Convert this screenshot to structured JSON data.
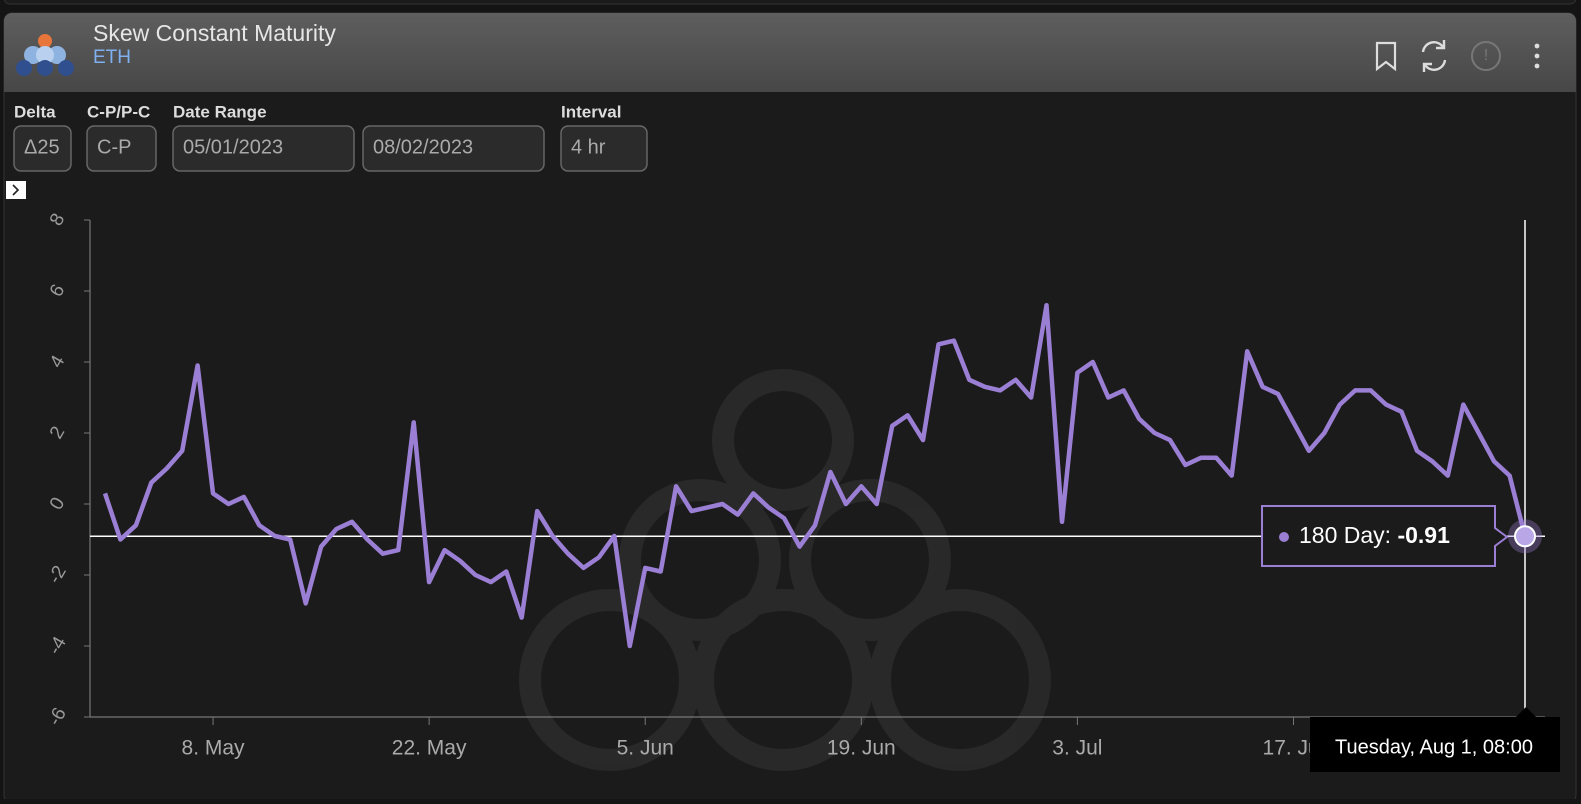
{
  "header": {
    "title": "Skew Constant Maturity",
    "subtitle": "ETH"
  },
  "controls": [
    {
      "label": "Delta",
      "value": "Δ25"
    },
    {
      "label": "C-P/P-C",
      "value": "C-P"
    },
    {
      "label": "Date Range",
      "value": "05/01/2023"
    },
    {
      "label": null,
      "value": "08/02/2023"
    },
    {
      "label": "Interval",
      "value": "4 hr"
    }
  ],
  "chart_data": {
    "type": "line",
    "categories": [
      null,
      null,
      null,
      null,
      null,
      null,
      null,
      "8. May",
      null,
      null,
      null,
      null,
      null,
      null,
      null,
      null,
      null,
      null,
      null,
      null,
      null,
      "22. May",
      null,
      null,
      null,
      null,
      null,
      null,
      null,
      null,
      null,
      null,
      null,
      null,
      null,
      "5. Jun",
      null,
      null,
      null,
      null,
      null,
      null,
      null,
      null,
      null,
      null,
      null,
      null,
      null,
      "19. Jun",
      null,
      null,
      null,
      null,
      null,
      null,
      null,
      null,
      null,
      null,
      null,
      null,
      null,
      "3. Jul",
      null,
      null,
      null,
      null,
      null,
      null,
      null,
      null,
      null,
      null,
      null,
      null,
      null,
      "17. Jul",
      null,
      null,
      null,
      null,
      null,
      null,
      null,
      null,
      null,
      null,
      null,
      null,
      null,
      null,
      null
    ],
    "series": [
      {
        "name": "180 Day",
        "color": "#9b7fd4",
        "values": [
          0.3,
          -1.0,
          -0.6,
          0.6,
          1.0,
          1.5,
          3.9,
          0.3,
          0.0,
          0.2,
          -0.6,
          -0.9,
          -1.0,
          -2.8,
          -1.2,
          -0.7,
          -0.5,
          -1.0,
          -1.4,
          -1.3,
          2.3,
          -2.2,
          -1.3,
          -1.6,
          -2.0,
          -2.2,
          -1.9,
          -3.2,
          -0.2,
          -0.9,
          -1.4,
          -1.8,
          -1.5,
          -0.9,
          -4.0,
          -1.8,
          -1.9,
          0.5,
          -0.2,
          -0.1,
          0.0,
          -0.3,
          0.3,
          -0.1,
          -0.4,
          -1.2,
          -0.6,
          0.9,
          0.0,
          0.5,
          0.0,
          2.2,
          2.5,
          1.8,
          4.5,
          4.6,
          3.5,
          3.3,
          3.2,
          3.5,
          3.0,
          5.6,
          -0.5,
          3.7,
          4.0,
          3.0,
          3.2,
          2.4,
          2.0,
          1.8,
          1.1,
          1.3,
          1.3,
          0.8,
          4.3,
          3.3,
          3.1,
          2.3,
          1.5,
          2.0,
          2.8,
          3.2,
          3.2,
          2.8,
          2.6,
          1.5,
          1.2,
          0.8,
          2.8,
          2.0,
          1.2,
          0.8,
          -0.91
        ]
      }
    ],
    "ylim": [
      -6,
      8
    ],
    "yticks": [
      8,
      6,
      4,
      2,
      0,
      -2,
      -4,
      -6
    ],
    "grid": false,
    "tooltip": {
      "date": "Tuesday, Aug 1, 08:00"
    }
  }
}
